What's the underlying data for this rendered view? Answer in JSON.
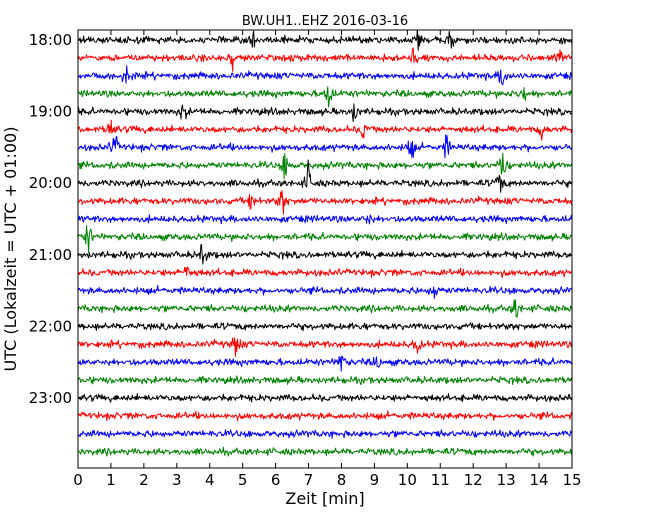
{
  "chart_data": {
    "type": "line",
    "title": "BW.UH1..EHZ 2016-03-16",
    "xlabel": "Zeit  [min]",
    "ylabel": "UTC (Lokalzeit = UTC + 01:00)",
    "xlim": [
      0,
      15
    ],
    "x_ticks": [
      "0",
      "1",
      "2",
      "3",
      "4",
      "5",
      "6",
      "7",
      "8",
      "9",
      "10",
      "11",
      "12",
      "13",
      "14",
      "15"
    ],
    "y_ticks": [
      "18:00",
      "19:00",
      "20:00",
      "21:00",
      "22:00",
      "23:00"
    ],
    "trace_interval_minutes": 15,
    "trace_count": 24,
    "trace_colors": [
      "#000000",
      "#ff0000",
      "#0000ff",
      "#008000"
    ],
    "grid": false,
    "events": [
      {
        "trace": 0,
        "minute": 5.3,
        "amplitude": 1.0
      },
      {
        "trace": 0,
        "minute": 10.3,
        "amplitude": 0.9
      },
      {
        "trace": 0,
        "minute": 11.3,
        "amplitude": 0.8
      },
      {
        "trace": 1,
        "minute": 4.7,
        "amplitude": 1.1
      },
      {
        "trace": 1,
        "minute": 10.2,
        "amplitude": 1.0
      },
      {
        "trace": 1,
        "minute": 14.6,
        "amplitude": 0.8
      },
      {
        "trace": 2,
        "minute": 1.5,
        "amplitude": 0.9
      },
      {
        "trace": 2,
        "minute": 12.9,
        "amplitude": 1.2
      },
      {
        "trace": 3,
        "minute": 7.6,
        "amplitude": 1.6
      },
      {
        "trace": 3,
        "minute": 13.5,
        "amplitude": 0.9
      },
      {
        "trace": 4,
        "minute": 3.2,
        "amplitude": 0.8
      },
      {
        "trace": 4,
        "minute": 8.4,
        "amplitude": 0.9
      },
      {
        "trace": 5,
        "minute": 1.0,
        "amplitude": 1.0
      },
      {
        "trace": 5,
        "minute": 8.7,
        "amplitude": 1.1
      },
      {
        "trace": 5,
        "minute": 14.1,
        "amplitude": 0.8
      },
      {
        "trace": 6,
        "minute": 1.1,
        "amplitude": 1.2
      },
      {
        "trace": 6,
        "minute": 10.1,
        "amplitude": 1.1
      },
      {
        "trace": 6,
        "minute": 11.2,
        "amplitude": 1.0
      },
      {
        "trace": 7,
        "minute": 6.3,
        "amplitude": 1.4
      },
      {
        "trace": 7,
        "minute": 12.9,
        "amplitude": 1.5
      },
      {
        "trace": 8,
        "minute": 7.0,
        "amplitude": 1.6
      },
      {
        "trace": 8,
        "minute": 12.8,
        "amplitude": 1.0
      },
      {
        "trace": 9,
        "minute": 5.3,
        "amplitude": 1.0
      },
      {
        "trace": 9,
        "minute": 6.2,
        "amplitude": 1.2
      },
      {
        "trace": 10,
        "minute": 8.8,
        "amplitude": 0.7
      },
      {
        "trace": 11,
        "minute": 0.3,
        "amplitude": 1.3
      },
      {
        "trace": 12,
        "minute": 3.8,
        "amplitude": 1.3
      },
      {
        "trace": 13,
        "minute": 3.3,
        "amplitude": 1.0
      },
      {
        "trace": 14,
        "minute": 10.8,
        "amplitude": 1.0
      },
      {
        "trace": 15,
        "minute": 13.3,
        "amplitude": 1.1
      },
      {
        "trace": 17,
        "minute": 4.8,
        "amplitude": 1.2
      },
      {
        "trace": 17,
        "minute": 10.3,
        "amplitude": 0.9
      },
      {
        "trace": 18,
        "minute": 8.0,
        "amplitude": 1.3
      },
      {
        "trace": 18,
        "minute": 9.1,
        "amplitude": 0.7
      }
    ]
  }
}
